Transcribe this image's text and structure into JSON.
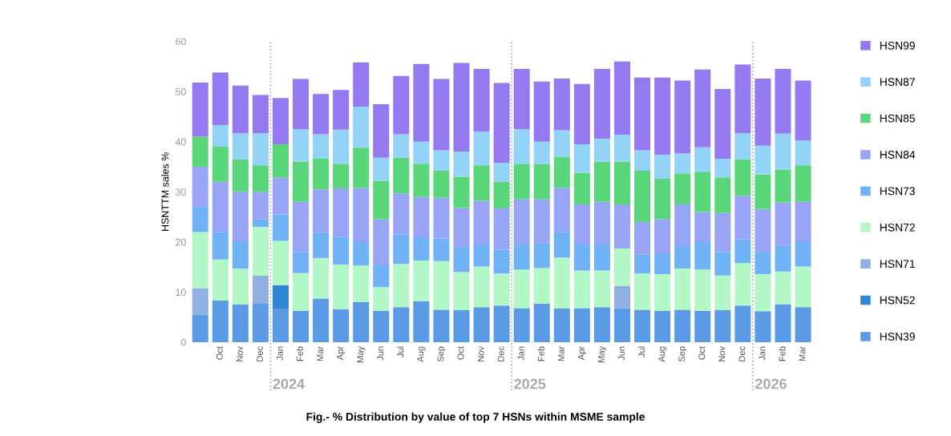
{
  "chart_data": {
    "type": "bar",
    "stacked": true,
    "ylabel": "HSNTTM sales %",
    "categories": [
      null,
      "Oct",
      "Nov",
      "Dec",
      "Jan",
      "Feb",
      "Mar",
      "Apr",
      "May",
      "Jun",
      "Jul",
      "Aug",
      "Sep",
      "Oct",
      "Nov",
      "Dec",
      "Jan",
      "Feb",
      "Mar",
      "Apr",
      "May",
      "Jun",
      "Jul",
      "Aug",
      "Sep",
      "Oct",
      "Nov",
      "Dec",
      "Jan",
      "Feb",
      "Mar"
    ],
    "ylim": [
      0,
      60
    ],
    "yticks": [
      0,
      10,
      20,
      30,
      40,
      50,
      60
    ],
    "legend": "right",
    "series": [
      {
        "name": "HSN39",
        "color": "#5b9be6",
        "values": [
          5.5,
          8.3,
          7.5,
          7.8,
          6.7,
          6.3,
          8.7,
          6.6,
          8,
          6.3,
          7,
          8.2,
          6.5,
          6.4,
          7,
          7.3,
          6.8,
          7.7,
          6.7,
          6.8,
          7,
          6.8,
          6.5,
          6.3,
          6.5,
          6.3,
          6.4,
          7.3,
          6.2,
          7.6,
          7
        ]
      },
      {
        "name": "HSN52",
        "color": "#2f86d1",
        "values": [
          0,
          0,
          0,
          0,
          4.7,
          0,
          0,
          0,
          0,
          0,
          0,
          0,
          0,
          0,
          0,
          0,
          0,
          0,
          0,
          0,
          0,
          0,
          0,
          0,
          0,
          0,
          0,
          0,
          0,
          0,
          0
        ]
      },
      {
        "name": "HSN71",
        "color": "#8fb0e0",
        "values": [
          5.3,
          0,
          0,
          5.5,
          0,
          0,
          0,
          0,
          0,
          0,
          0,
          0,
          0,
          0,
          0,
          0,
          0,
          0,
          0,
          0,
          0,
          4.4,
          0,
          0,
          0,
          0,
          0,
          0,
          0,
          0,
          0
        ]
      },
      {
        "name": "HSN72",
        "color": "#b3f7c6",
        "values": [
          11.2,
          8.2,
          7.2,
          9.7,
          8.8,
          7.5,
          8.1,
          8.9,
          7.3,
          4.7,
          8.6,
          8.1,
          9.7,
          7.6,
          8.1,
          6.4,
          7.7,
          7.1,
          10.2,
          7.5,
          7.3,
          7.5,
          7.2,
          7.3,
          8.2,
          8.2,
          6.9,
          8.5,
          7.4,
          6.5,
          8.1
        ]
      },
      {
        "name": "HSN73",
        "color": "#6fb2f5",
        "values": [
          5,
          5.5,
          5.3,
          1.5,
          5.3,
          4.2,
          5.2,
          5.5,
          4.7,
          4.5,
          5.9,
          4.5,
          4.5,
          5,
          4.4,
          4.8,
          5,
          5,
          5.1,
          5.2,
          5.2,
          0,
          3.8,
          4,
          4.5,
          5.5,
          4.7,
          4.7,
          4.3,
          5.2,
          4.9
        ]
      },
      {
        "name": "HSN84",
        "color": "#98a4f5",
        "values": [
          8,
          10,
          10,
          5.5,
          7.3,
          10,
          8.5,
          9.7,
          10.8,
          9,
          8.2,
          8.2,
          8.1,
          7.8,
          8.7,
          8.2,
          9,
          8.7,
          8.8,
          8,
          8.5,
          8.8,
          6.5,
          7,
          8.3,
          6,
          7.8,
          8.7,
          8.7,
          8.6,
          8
        ]
      },
      {
        "name": "HSN85",
        "color": "#5ad67a",
        "values": [
          6,
          7,
          6.5,
          5.3,
          6.7,
          8,
          6.2,
          4.9,
          8,
          7.7,
          7.1,
          6.6,
          5.5,
          6.2,
          7.1,
          5.3,
          7,
          7,
          6.2,
          6.3,
          8,
          8.5,
          10.2,
          8,
          6.2,
          8,
          7.1,
          7.3,
          6.9,
          6.5,
          7.3
        ]
      },
      {
        "name": "HSN87",
        "color": "#92d3f7",
        "values": [
          0,
          4.3,
          5.2,
          6.4,
          0,
          6.5,
          4.8,
          6.8,
          8.2,
          4.6,
          4.7,
          4.4,
          4,
          5,
          6.7,
          3.8,
          7,
          4.5,
          5.3,
          5.7,
          4.6,
          5.4,
          4.1,
          4.8,
          4,
          4.9,
          3.7,
          5.2,
          5.7,
          7.2,
          5
        ]
      },
      {
        "name": "HSN99",
        "color": "#9579f0",
        "values": [
          10.8,
          10.5,
          9.5,
          7.6,
          9.2,
          10,
          8,
          7.9,
          8.8,
          10.7,
          11.6,
          15.5,
          14.2,
          17.7,
          12.5,
          15.9,
          12,
          12,
          10.3,
          12,
          13.9,
          14.6,
          14.5,
          15.4,
          14.5,
          15.5,
          13.9,
          13.7,
          13.4,
          12.9,
          11.9
        ]
      }
    ],
    "annotations": [
      "2024",
      "2025",
      "2026",
      "Fig.- % Distribution by value of top 7 HSNs within MSME sample"
    ]
  }
}
